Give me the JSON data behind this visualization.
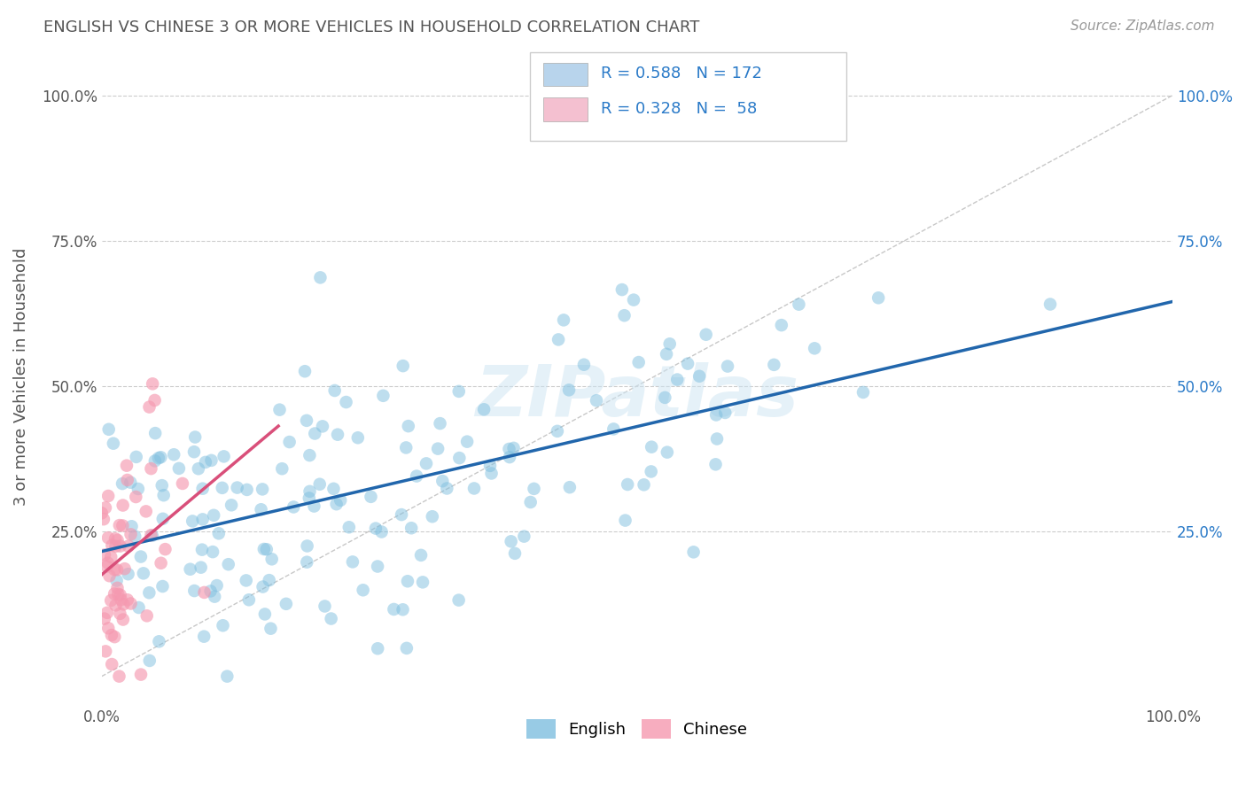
{
  "title": "ENGLISH VS CHINESE 3 OR MORE VEHICLES IN HOUSEHOLD CORRELATION CHART",
  "source": "Source: ZipAtlas.com",
  "ylabel": "3 or more Vehicles in Household",
  "xlim": [
    0,
    1.0
  ],
  "ylim": [
    -0.05,
    1.08
  ],
  "xtick_labels": [
    "0.0%",
    "100.0%"
  ],
  "ytick_labels": [
    "25.0%",
    "50.0%",
    "75.0%",
    "100.0%"
  ],
  "ytick_positions": [
    0.25,
    0.5,
    0.75,
    1.0
  ],
  "english_color": "#7fbfdf",
  "chinese_color": "#f599b0",
  "english_line_color": "#2166ac",
  "chinese_line_color": "#d94f7a",
  "english_R": 0.588,
  "english_N": 172,
  "chinese_R": 0.328,
  "chinese_N": 58,
  "watermark": "ZIPatlas",
  "background_color": "#ffffff",
  "grid_color": "#cccccc",
  "title_color": "#555555",
  "legend_box_color_english": "#b8d4ec",
  "legend_box_color_chinese": "#f4c0d0"
}
